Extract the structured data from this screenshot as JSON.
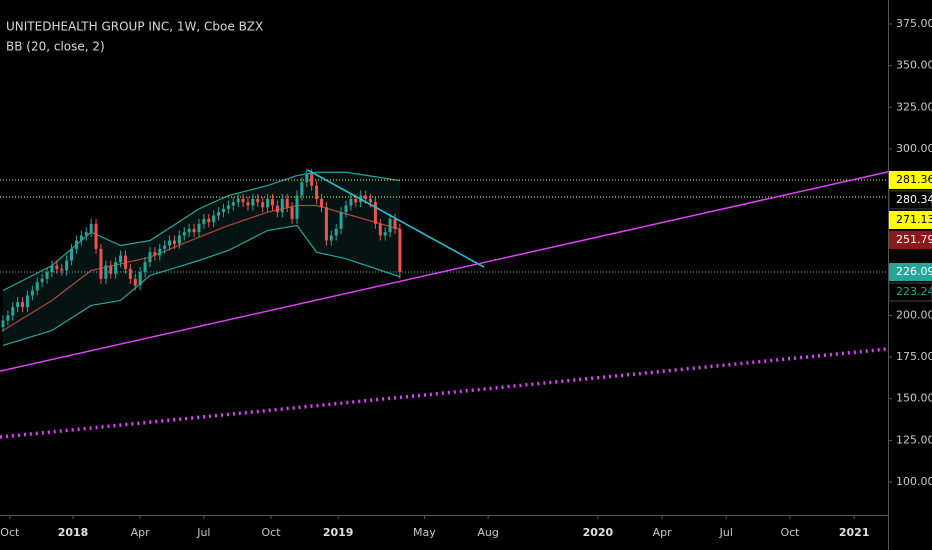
{
  "chart_data": {
    "type": "candlestick",
    "title": "UNITEDHEALTH GROUP INC, 1W, Cboe BZX",
    "subtitle": "BB (20, close, 2)",
    "up_color": "#26a69a",
    "down_color": "#ef5350",
    "candles": {
      "open": [
        193,
        197,
        200,
        205,
        208,
        205,
        212,
        215,
        220,
        222,
        226,
        230,
        228,
        227,
        233,
        240,
        245,
        248,
        250,
        255,
        240,
        222,
        230,
        225,
        232,
        236,
        228,
        222,
        218,
        226,
        232,
        238,
        236,
        240,
        242,
        245,
        243,
        248,
        250,
        252,
        250,
        255,
        258,
        256,
        260,
        262,
        264,
        266,
        268,
        270,
        268,
        266,
        270,
        268,
        265,
        270,
        266,
        262,
        270,
        265,
        258,
        272,
        280,
        285,
        278,
        270,
        265,
        245,
        248,
        252,
        262,
        266,
        270,
        268,
        272,
        270,
        268,
        255,
        248,
        250,
        258,
        252
      ],
      "high": [
        200,
        203,
        208,
        211,
        211,
        215,
        218,
        223,
        225,
        229,
        233,
        233,
        231,
        236,
        243,
        248,
        251,
        253,
        258,
        258,
        243,
        233,
        233,
        235,
        239,
        239,
        231,
        225,
        229,
        235,
        241,
        241,
        243,
        245,
        248,
        248,
        251,
        253,
        255,
        255,
        258,
        261,
        261,
        263,
        265,
        267,
        269,
        271,
        273,
        273,
        271,
        273,
        273,
        271,
        273,
        273,
        269,
        273,
        273,
        268,
        275,
        283,
        288,
        288,
        281,
        273,
        268,
        251,
        255,
        265,
        269,
        273,
        273,
        275,
        275,
        273,
        271,
        258,
        253,
        261,
        261,
        255
      ],
      "low": [
        190,
        194,
        197,
        202,
        202,
        202,
        209,
        212,
        217,
        219,
        223,
        225,
        224,
        224,
        230,
        237,
        242,
        245,
        247,
        237,
        219,
        219,
        222,
        222,
        229,
        225,
        219,
        215,
        215,
        223,
        229,
        233,
        233,
        237,
        239,
        240,
        240,
        245,
        247,
        247,
        247,
        252,
        253,
        253,
        257,
        259,
        261,
        263,
        265,
        265,
        263,
        263,
        265,
        262,
        262,
        263,
        259,
        259,
        262,
        255,
        255,
        269,
        277,
        275,
        267,
        262,
        242,
        242,
        245,
        249,
        259,
        263,
        265,
        265,
        267,
        265,
        252,
        245,
        245,
        247,
        249,
        222
      ],
      "close": [
        197,
        200,
        205,
        208,
        205,
        212,
        215,
        220,
        222,
        226,
        230,
        228,
        227,
        233,
        240,
        245,
        248,
        250,
        255,
        240,
        222,
        230,
        225,
        232,
        236,
        228,
        222,
        218,
        226,
        232,
        238,
        236,
        240,
        242,
        245,
        243,
        248,
        250,
        252,
        250,
        255,
        258,
        256,
        260,
        262,
        264,
        266,
        268,
        270,
        268,
        266,
        270,
        268,
        265,
        270,
        266,
        262,
        270,
        265,
        258,
        272,
        280,
        285,
        278,
        270,
        265,
        245,
        248,
        252,
        262,
        266,
        270,
        268,
        272,
        270,
        268,
        255,
        248,
        250,
        258,
        252,
        226.09
      ]
    },
    "bands": {
      "x": [
        0,
        10,
        18,
        24,
        30,
        40,
        46,
        54,
        60,
        64,
        70,
        81
      ],
      "upper": [
        215,
        230,
        250,
        242,
        245,
        264,
        272,
        278,
        284,
        286,
        286,
        281
      ],
      "middle": [
        191,
        209,
        227,
        231,
        235,
        247,
        254,
        262,
        266,
        266,
        261,
        251.79
      ],
      "lower": [
        182,
        191,
        206,
        209,
        224,
        233,
        239,
        251,
        254,
        238,
        234,
        223.24
      ],
      "upper_color": "#26a69a",
      "middle_color": "#b2453c",
      "lower_color": "#26a69a"
    },
    "hlines": {
      "values": [
        281.36,
        271.13,
        226.09
      ],
      "colors": [
        "#ffff00",
        "#ffff00",
        "#26c6da"
      ]
    },
    "trendlines": [
      {
        "x": [
          62.2,
          98.2
        ],
        "y": [
          287.3,
          229
        ],
        "color": "#26c6da",
        "dotted": false
      },
      {
        "x": [
          -0.6,
          180.6
        ],
        "y": [
          166.6,
          286.2
        ],
        "color": "#e040fb",
        "dotted": false
      },
      {
        "x": [
          -0.6,
          180.6
        ],
        "y": [
          127,
          179.9
        ],
        "color": "#e040fb",
        "dotted": true
      }
    ],
    "price_labels": {
      "values": [
        281.36,
        280.34,
        271.13,
        251.79,
        226.09,
        223.24
      ],
      "bg": [
        "#ffff00",
        "#000000",
        "#ffff00",
        "#8b1a1a",
        "#26a69a",
        "#000000"
      ],
      "text": [
        "#000000",
        "#ffffff",
        "#000000",
        "#ffffff",
        "#ffffff",
        "#26a69a"
      ]
    },
    "xlim": [
      -0.6,
      180.6
    ],
    "xticks": [
      {
        "value": 1.4,
        "label": "Oct"
      },
      {
        "value": 14.3,
        "label": "2018",
        "bold": true
      },
      {
        "value": 28,
        "label": "Apr"
      },
      {
        "value": 41,
        "label": "Jul"
      },
      {
        "value": 54.7,
        "label": "Oct"
      },
      {
        "value": 68.4,
        "label": "2019",
        "bold": true
      },
      {
        "value": 86,
        "label": "May"
      },
      {
        "value": 99,
        "label": "Aug"
      },
      {
        "value": 121.4,
        "label": "2020",
        "bold": true
      },
      {
        "value": 134.5,
        "label": "Apr"
      },
      {
        "value": 147.6,
        "label": "Jul"
      },
      {
        "value": 160.6,
        "label": "Oct"
      },
      {
        "value": 173.7,
        "label": "2021",
        "bold": true
      }
    ],
    "ylim": [
      80.2,
      389.4
    ],
    "yticks": [
      {
        "value": 375,
        "label": "375.00"
      },
      {
        "value": 350,
        "label": "350.00"
      },
      {
        "value": 325,
        "label": "325.00"
      },
      {
        "value": 300,
        "label": "300.00"
      },
      {
        "value": 200,
        "label": "200.00"
      },
      {
        "value": 175,
        "label": "175.00"
      },
      {
        "value": 150,
        "label": "150.00"
      },
      {
        "value": 125,
        "label": "125.00"
      },
      {
        "value": 100,
        "label": "100.00"
      }
    ]
  }
}
